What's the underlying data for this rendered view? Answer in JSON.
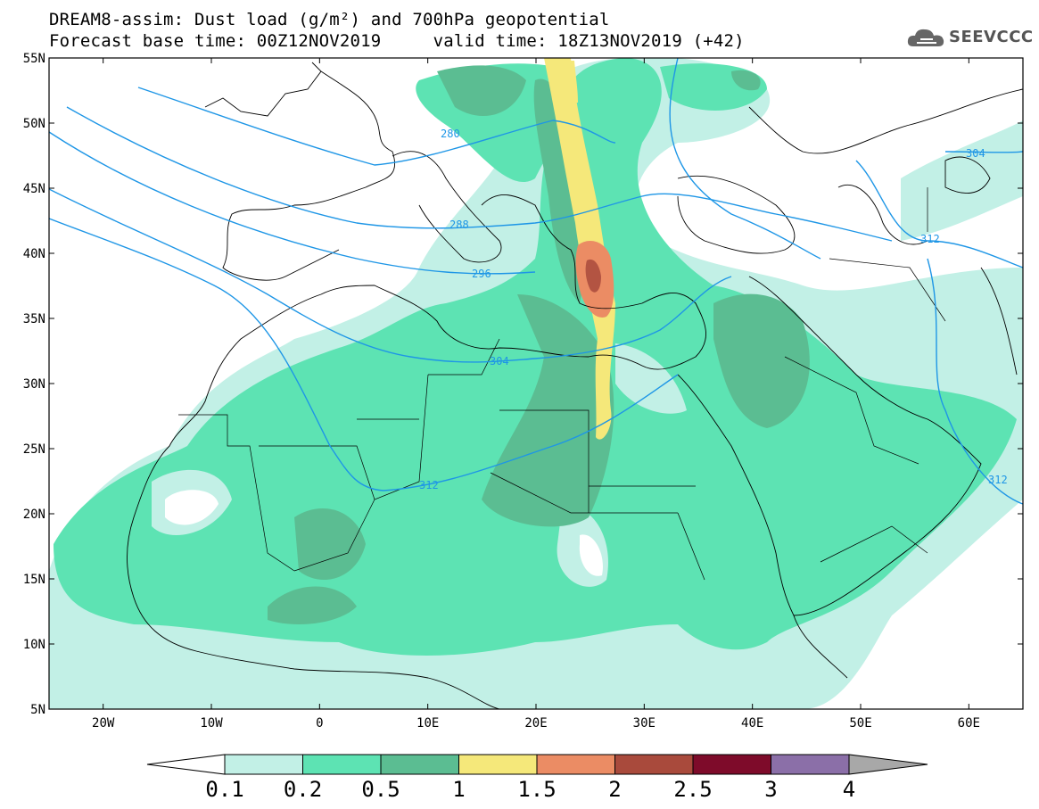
{
  "header": {
    "title_line1": "DREAM8-assim: Dust load (g/m²) and 700hPa geopotential",
    "title_line2": "Forecast base time: 00Z12NOV2019     valid time: 18Z13NOV2019 (+42)"
  },
  "logo": {
    "text": "SEEVCCC",
    "icon": "cloud-icon"
  },
  "map": {
    "lat_labels": [
      "55N",
      "50N",
      "45N",
      "40N",
      "35N",
      "30N",
      "25N",
      "20N",
      "15N",
      "10N",
      "5N"
    ],
    "lon_labels": [
      "20W",
      "10W",
      "0",
      "10E",
      "20E",
      "30E",
      "40E",
      "50E",
      "60E"
    ],
    "lon_range": [
      -25,
      65
    ],
    "lat_range": [
      5,
      55
    ],
    "contour_labels": [
      "280",
      "288",
      "296",
      "304",
      "312",
      "304",
      "312",
      "312"
    ]
  },
  "legend": {
    "levels": [
      "0.1",
      "0.2",
      "0.5",
      "1",
      "1.5",
      "2",
      "2.5",
      "3",
      "4"
    ],
    "colors": [
      "#c2f0e6",
      "#5de3b3",
      "#5bbd92",
      "#f5e87a",
      "#eb8c64",
      "#a94a3c",
      "#7e0b2a",
      "#8b6fa8"
    ],
    "extend_low_color": "#ffffff",
    "extend_high_color": "#a8a8a8"
  }
}
